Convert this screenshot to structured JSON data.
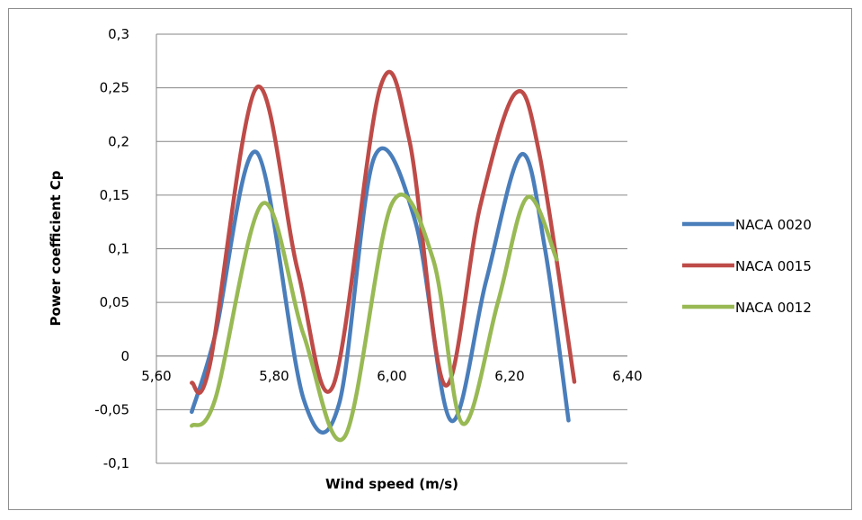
{
  "chart_data": {
    "type": "line",
    "title": "",
    "xlabel": "Wind speed (m/s)",
    "ylabel": "Power coefficient  Cp",
    "xlim": [
      5.6,
      6.4
    ],
    "ylim": [
      -0.1,
      0.3
    ],
    "x_tick_labels": [
      "5,60",
      "5,80",
      "6,00",
      "6,20",
      "6,40"
    ],
    "x_ticks": [
      5.6,
      5.8,
      6.0,
      6.2,
      6.4
    ],
    "y_tick_labels": [
      "-0,1",
      "-0,05",
      "0",
      "0,05",
      "0,1",
      "0,15",
      "0,2",
      "0,25",
      "0,3"
    ],
    "y_ticks": [
      -0.1,
      -0.05,
      0,
      0.05,
      0.1,
      0.15,
      0.2,
      0.25,
      0.3
    ],
    "grid": true,
    "legend": "right",
    "smooth": true,
    "series": [
      {
        "name": "NACA 0020",
        "color": "#4a7ebb",
        "x": [
          5.66,
          5.7,
          5.77,
          5.85,
          5.91,
          5.97,
          6.04,
          6.1,
          6.16,
          6.22,
          6.26,
          6.3
        ],
        "y": [
          -0.052,
          0.02,
          0.19,
          -0.04,
          -0.045,
          0.185,
          0.125,
          -0.06,
          0.07,
          0.188,
          0.1,
          -0.06
        ]
      },
      {
        "name": "NACA 0015",
        "color": "#be4b48",
        "x": [
          5.66,
          5.69,
          5.77,
          5.84,
          5.9,
          5.98,
          6.03,
          6.09,
          6.15,
          6.21,
          6.25,
          6.31
        ],
        "y": [
          -0.025,
          -0.01,
          0.25,
          0.08,
          -0.028,
          0.25,
          0.2,
          -0.027,
          0.14,
          0.245,
          0.19,
          -0.024
        ]
      },
      {
        "name": "NACA 0012",
        "color": "#98b954",
        "x": [
          5.66,
          5.7,
          5.78,
          5.85,
          5.92,
          6.0,
          6.07,
          6.12,
          6.18,
          6.23,
          6.28
        ],
        "y": [
          -0.065,
          -0.04,
          0.142,
          0.02,
          -0.075,
          0.142,
          0.09,
          -0.063,
          0.05,
          0.148,
          0.09
        ]
      }
    ]
  }
}
